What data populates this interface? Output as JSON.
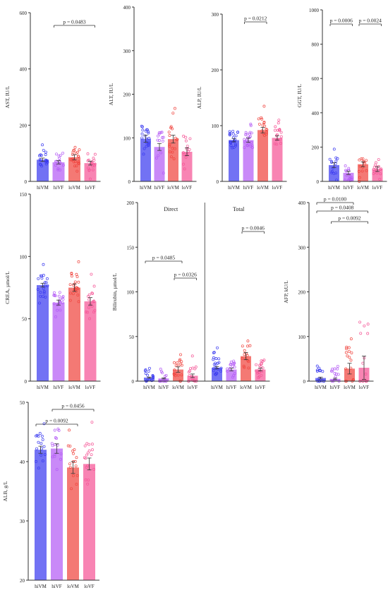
{
  "colors": {
    "hiVM": "#3b3bf0",
    "hiVF": "#b45cf5",
    "loVM": "#f0453f",
    "loVF": "#f55596",
    "axis": "#333333"
  },
  "chart_data": [
    {
      "id": "ast",
      "type": "bar",
      "ylabel": "AST, IU/L",
      "ylim": [
        0,
        600
      ],
      "yticks": [
        "0",
        "200",
        "400",
        "600"
      ],
      "categories": [
        "hiVM",
        "hiVF",
        "loVM",
        "loVF"
      ],
      "values": [
        77,
        68,
        86,
        65
      ],
      "errors": [
        6,
        6,
        9,
        7
      ],
      "pvalues": [
        {
          "label": "p = 0.0483",
          "from": 1,
          "to": 3
        }
      ]
    },
    {
      "id": "alt",
      "type": "bar",
      "ylabel": "ALT, IU/L",
      "ylim": [
        0,
        400
      ],
      "yticks": [
        "0",
        "100",
        "200",
        "300",
        "400"
      ],
      "categories": [
        "hiVM",
        "hiVF",
        "loVM",
        "loVF"
      ],
      "values": [
        98,
        79,
        97,
        68
      ],
      "errors": [
        8,
        8,
        9,
        9
      ],
      "pvalues": []
    },
    {
      "id": "alp",
      "type": "bar",
      "ylabel": "ALP, IU/L",
      "ylim": [
        0,
        300
      ],
      "yticks": [
        "0",
        "100",
        "200",
        "300"
      ],
      "categories": [
        "hiVM",
        "hiVF",
        "loVM",
        "loVF"
      ],
      "values": [
        74,
        74,
        92,
        78
      ],
      "errors": [
        3,
        4,
        5,
        4
      ],
      "pvalues": [
        {
          "label": "p = 0.0212",
          "from": 1,
          "to": 2
        }
      ]
    },
    {
      "id": "ggt",
      "type": "bar",
      "ylabel": "GGT, IU/L",
      "ylim": [
        0,
        1000
      ],
      "yticks": [
        "0",
        "200",
        "400",
        "600",
        "800",
        "1000"
      ],
      "categories": [
        "hiVM",
        "hiVF",
        "loVM",
        "loVF"
      ],
      "values": [
        95,
        50,
        100,
        72
      ],
      "errors": [
        14,
        10,
        14,
        14
      ],
      "pvalues": [
        {
          "label": "p = 0.0006",
          "from": 0,
          "to": 1
        },
        {
          "label": "p = 0.0024",
          "from": 2,
          "to": 3
        }
      ]
    },
    {
      "id": "crea",
      "type": "bar",
      "ylabel": "CREA, µmol/L",
      "ylim": [
        0,
        150
      ],
      "yticks": [
        "0",
        "50",
        "100",
        "150"
      ],
      "categories": [
        "hiVM",
        "hiVF",
        "loVM",
        "loVF"
      ],
      "values": [
        77,
        63,
        75,
        64
      ],
      "errors": [
        1.5,
        2,
        3,
        3
      ],
      "pvalues": []
    },
    {
      "id": "bilirubin",
      "type": "bar",
      "ylabel": "Bilirubin, µmol/L",
      "ylim": [
        0,
        200
      ],
      "yticks": [
        "0",
        "50",
        "100",
        "150",
        "200"
      ],
      "groups": [
        "Direct",
        "Total"
      ],
      "categories": [
        "hiVM",
        "hiVF",
        "loVM",
        "loVF",
        "hiVM",
        "hiVF",
        "loVM",
        "loVF"
      ],
      "values": [
        4,
        3,
        13,
        6,
        15,
        13,
        28,
        13
      ],
      "errors": [
        0.6,
        0.6,
        3,
        2,
        1.2,
        1.5,
        4,
        1.5
      ],
      "pvalues": [
        {
          "label": "p = 0.0485",
          "from": 0,
          "to": 2
        },
        {
          "label": "p = 0.0326",
          "from": 2,
          "to": 3
        },
        {
          "label": "p = 0.0046",
          "from": 6,
          "to": 7
        }
      ]
    },
    {
      "id": "afp",
      "type": "bar",
      "ylabel": "AFP, kU/L",
      "ylim": [
        0,
        400
      ],
      "yticks": [
        "0",
        "100",
        "200",
        "300",
        "400"
      ],
      "categories": [
        "hiVM",
        "hiVF",
        "loVM",
        "loVF"
      ],
      "values": [
        7,
        5,
        28,
        30
      ],
      "errors": [
        2,
        1.5,
        12,
        26
      ],
      "pvalues": [
        {
          "label": "p = 0.0100",
          "from": 0,
          "to": 2
        },
        {
          "label": "p = 0.0408",
          "from": 0,
          "to": 3
        },
        {
          "label": "p = 0.0092",
          "from": 1,
          "to": 3
        }
      ]
    },
    {
      "id": "alb",
      "type": "bar",
      "ylabel": "ALB, g/L",
      "ylim": [
        20,
        50
      ],
      "yticks": [
        "20",
        "30",
        "40",
        "50"
      ],
      "categories": [
        "hiVM",
        "hiVF",
        "loVM",
        "loVF"
      ],
      "values": [
        42,
        42.2,
        39,
        39.6
      ],
      "errors": [
        0.6,
        0.8,
        1,
        1
      ],
      "pvalues": [
        {
          "label": "p = 0.0092",
          "from": 0,
          "to": 2
        },
        {
          "label": "p = 0.0456",
          "from": 1,
          "to": 3
        }
      ]
    }
  ]
}
